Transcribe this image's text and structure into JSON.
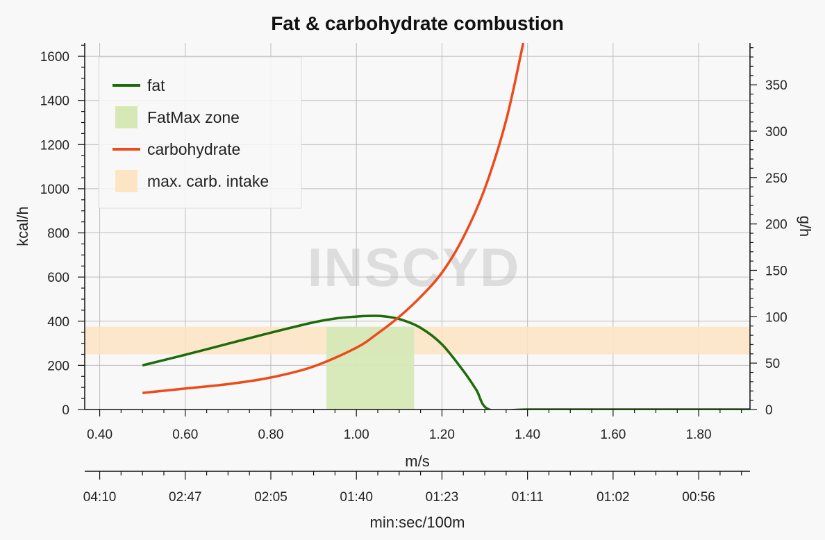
{
  "chart_data": {
    "type": "line",
    "title": "Fat & carbohydrate combustion",
    "xlabel": "m/s",
    "ylabel": "kcal/h",
    "y2label": "g/h",
    "x2label": "min:sec/100m",
    "watermark": "INSCYD",
    "xlim": [
      0.365,
      1.92
    ],
    "ylim": [
      0,
      1660
    ],
    "y2lim": [
      0,
      395
    ],
    "x_ticks": [
      0.4,
      0.6,
      0.8,
      1.0,
      1.2,
      1.4,
      1.6,
      1.8
    ],
    "x_tick_labels": [
      "0.40",
      "0.60",
      "0.80",
      "1.00",
      "1.20",
      "1.40",
      "1.60",
      "1.80"
    ],
    "y_ticks": [
      0,
      200,
      400,
      600,
      800,
      1000,
      1200,
      1400,
      1600
    ],
    "y_tick_labels": [
      "0",
      "200",
      "400",
      "600",
      "800",
      "1000",
      "1200",
      "1400",
      "1600"
    ],
    "y2_ticks": [
      0,
      50,
      100,
      150,
      200,
      250,
      300,
      350
    ],
    "y2_tick_labels": [
      "0",
      "50",
      "100",
      "150",
      "200",
      "250",
      "300",
      "350"
    ],
    "x2_ticks": [
      0.4,
      0.6,
      0.8,
      1.0,
      1.2,
      1.4,
      1.6,
      1.8
    ],
    "x2_tick_labels": [
      "04:10",
      "02:47",
      "02:05",
      "01:40",
      "01:23",
      "01:11",
      "01:02",
      "00:56"
    ],
    "grid": true,
    "legend_position": "top-left",
    "series": [
      {
        "name": "fat",
        "color": "#1e6b0a",
        "x": [
          0.5,
          0.6,
          0.7,
          0.8,
          0.9,
          0.95,
          1.0,
          1.03,
          1.06,
          1.1,
          1.15,
          1.2,
          1.25,
          1.28,
          1.31,
          1.4,
          1.6,
          1.8,
          1.92
        ],
        "y": [
          200,
          248,
          298,
          348,
          395,
          412,
          421,
          424,
          423,
          410,
          370,
          295,
          175,
          90,
          0,
          0,
          0,
          0,
          0
        ]
      },
      {
        "name": "carbohydrate",
        "color": "#ec4a1a",
        "x": [
          0.5,
          0.6,
          0.7,
          0.8,
          0.9,
          1.0,
          1.05,
          1.1,
          1.15,
          1.2,
          1.25,
          1.3,
          1.35,
          1.39
        ],
        "y": [
          75,
          95,
          115,
          145,
          195,
          280,
          345,
          420,
          510,
          620,
          780,
          1000,
          1310,
          1660
        ]
      }
    ],
    "bands": [
      {
        "name": "FatMax zone",
        "color": "#d6e8b6",
        "x_range": [
          0.93,
          1.135
        ],
        "y_range": [
          0,
          375
        ]
      },
      {
        "name": "max. carb. intake",
        "color": "#fde4c2",
        "x_range": [
          0.365,
          1.92
        ],
        "y_range": [
          250,
          375
        ]
      }
    ]
  }
}
